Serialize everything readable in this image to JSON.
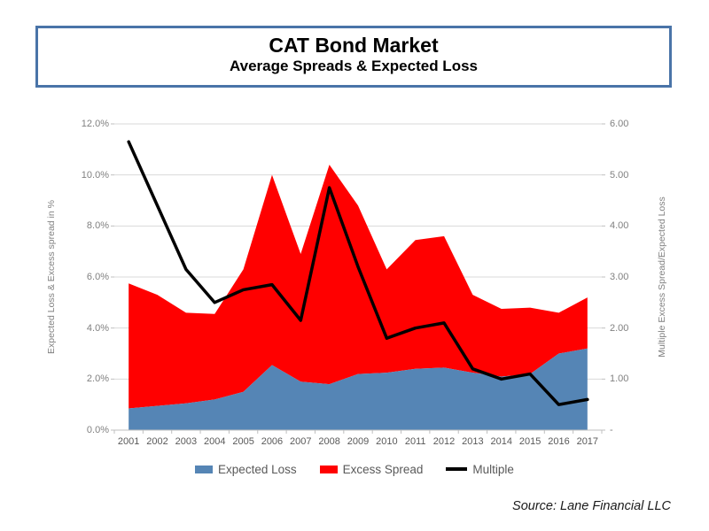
{
  "header": {
    "title": "CAT Bond Market",
    "subtitle": "Average Spreads & Expected Loss"
  },
  "chart_data": {
    "type": "combo (stacked area + line)",
    "categories": [
      "2001",
      "2002",
      "2003",
      "2004",
      "2005",
      "2006",
      "2007",
      "2008",
      "2009",
      "2010",
      "2011",
      "2012",
      "2013",
      "2014",
      "2015",
      "2016",
      "2017"
    ],
    "series": [
      {
        "name": "Expected Loss",
        "type": "area-stacked",
        "axis": "left",
        "color": "#5585B5",
        "values": [
          0.85,
          0.95,
          1.05,
          1.2,
          1.5,
          2.55,
          1.9,
          1.8,
          2.2,
          2.25,
          2.4,
          2.45,
          2.25,
          2.1,
          2.2,
          3.0,
          3.2
        ]
      },
      {
        "name": "Excess Spread",
        "type": "area-stacked",
        "axis": "left",
        "color": "#FF0000",
        "values": [
          4.9,
          4.35,
          3.55,
          3.35,
          4.8,
          7.45,
          5.0,
          8.6,
          6.6,
          4.05,
          5.05,
          5.15,
          3.05,
          2.65,
          2.6,
          1.6,
          2.0
        ]
      },
      {
        "name": "Multiple",
        "type": "line",
        "axis": "right",
        "color": "#000000",
        "values": [
          5.65,
          4.4,
          3.15,
          2.5,
          2.75,
          2.85,
          2.15,
          4.75,
          3.2,
          1.8,
          2.0,
          2.1,
          1.2,
          1.0,
          1.1,
          0.5,
          0.6
        ]
      }
    ],
    "left_axis": {
      "title": "Expected Loss & Excess spread in %",
      "min": 0,
      "max": 12,
      "tick_values": [
        0,
        2,
        4,
        6,
        8,
        10,
        12
      ],
      "tick_labels": [
        "0.0%",
        "2.0%",
        "4.0%",
        "6.0%",
        "8.0%",
        "10.0%",
        "12.0%"
      ]
    },
    "right_axis": {
      "title": "Multiple Excess Spread/Expected Loss",
      "min": 0,
      "max": 6,
      "tick_values": [
        0,
        1,
        2,
        3,
        4,
        5,
        6
      ],
      "tick_labels": [
        "-",
        "1.00",
        "2.00",
        "3.00",
        "4.00",
        "5.00",
        "6.00"
      ]
    },
    "grid": true,
    "legend_position": "bottom"
  },
  "source": "Source: Lane Financial LLC",
  "colors": {
    "title_box_border": "#4A74A8",
    "gridline": "#D9D9D9",
    "axis_line": "#BFBFBF",
    "tick_text": "#808080",
    "category_text": "#595959",
    "legend_text": "#595959"
  }
}
